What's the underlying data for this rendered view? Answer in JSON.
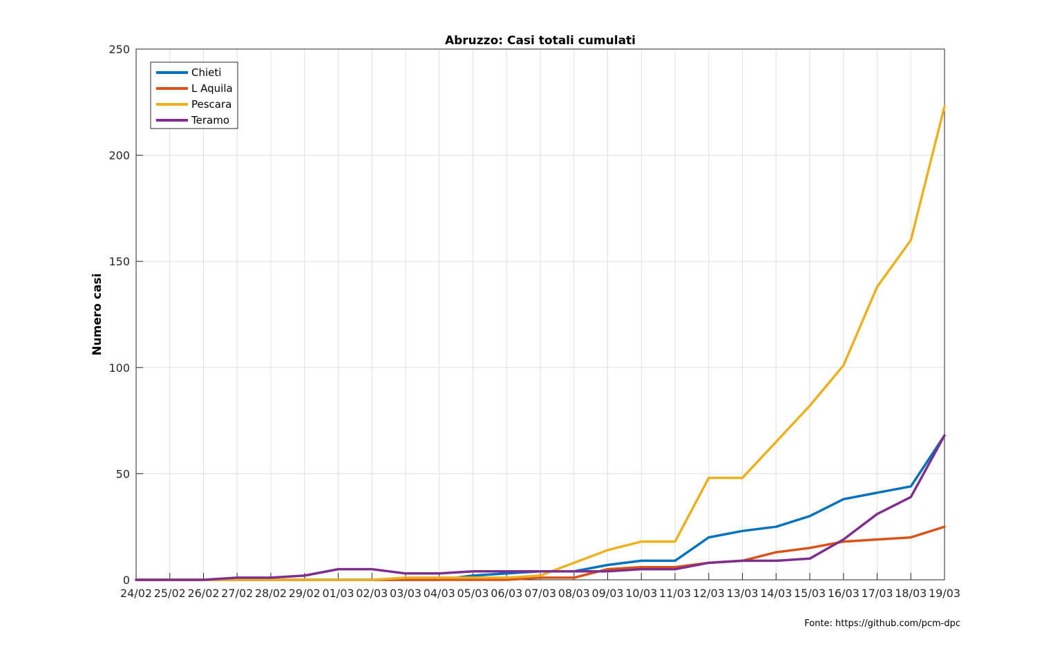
{
  "chart_data": {
    "type": "line",
    "title": "Abruzzo: Casi totali cumulati",
    "xlabel": "",
    "ylabel": "Numero casi",
    "categories": [
      "24/02",
      "25/02",
      "26/02",
      "27/02",
      "28/02",
      "29/02",
      "01/03",
      "02/03",
      "03/03",
      "04/03",
      "05/03",
      "06/03",
      "07/03",
      "08/03",
      "09/03",
      "10/03",
      "11/03",
      "12/03",
      "13/03",
      "14/03",
      "15/03",
      "16/03",
      "17/03",
      "18/03",
      "19/03"
    ],
    "ylim": [
      0,
      250
    ],
    "yticks": [
      0,
      50,
      100,
      150,
      200,
      250
    ],
    "grid": true,
    "legend_position": "top-left",
    "series": [
      {
        "name": "Chieti",
        "color": "#0072BD",
        "values": [
          0,
          0,
          0,
          0,
          0,
          0,
          0,
          0,
          0,
          0,
          2,
          3,
          4,
          4,
          7,
          9,
          9,
          20,
          23,
          25,
          30,
          38,
          41,
          44,
          68
        ]
      },
      {
        "name": "L Aquila",
        "color": "#D95319",
        "values": [
          0,
          0,
          0,
          0,
          0,
          0,
          0,
          0,
          0,
          0,
          0,
          0,
          1,
          1,
          5,
          6,
          6,
          8,
          9,
          13,
          15,
          18,
          19,
          20,
          25
        ]
      },
      {
        "name": "Pescara",
        "color": "#EDB120",
        "values": [
          0,
          0,
          0,
          0,
          0,
          0,
          0,
          0,
          1,
          1,
          1,
          1,
          2,
          8,
          14,
          18,
          18,
          48,
          48,
          65,
          82,
          101,
          138,
          160,
          223
        ]
      },
      {
        "name": "Teramo",
        "color": "#7E2F8E",
        "values": [
          0,
          0,
          0,
          1,
          1,
          2,
          5,
          5,
          3,
          3,
          4,
          4,
          4,
          4,
          4,
          5,
          5,
          8,
          9,
          9,
          10,
          19,
          31,
          39,
          68
        ]
      }
    ],
    "source_note": "Fonte: https://github.com/pcm-dpc"
  }
}
